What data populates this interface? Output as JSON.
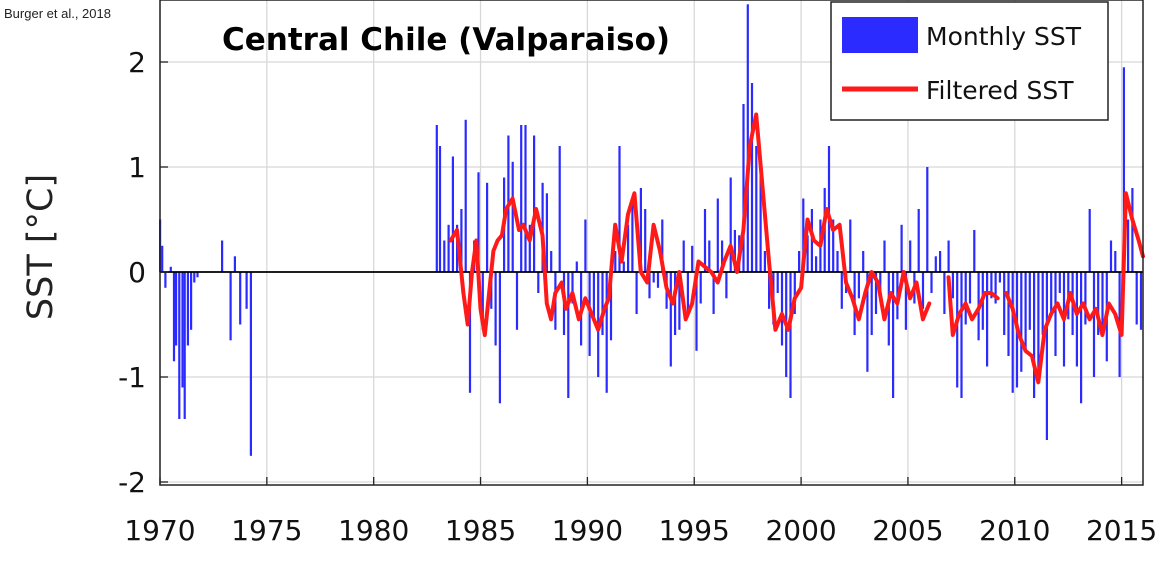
{
  "credit": "Burger et al., 2018",
  "chart_data": {
    "type": "bar",
    "title": "Central Chile (Valparaiso)",
    "ylabel": "SST [°C]",
    "xlabel": "",
    "xlim": [
      1970,
      2016
    ],
    "ylim": [
      -2,
      2.6
    ],
    "xticks": [
      1970,
      1975,
      1980,
      1985,
      1990,
      1995,
      2000,
      2005,
      2010,
      2015
    ],
    "yticks": [
      -2,
      -1,
      0,
      1,
      2
    ],
    "grid": true,
    "legend_position": "top-right",
    "colors": {
      "monthly": "#2b2bff",
      "filtered": "#ff1a1a",
      "zero_line": "#000000",
      "grid": "#d8d8d8"
    },
    "series": [
      {
        "name": "Monthly SST",
        "type": "bar",
        "x": [
          1970.0,
          1970.1,
          1970.25,
          1970.5,
          1970.65,
          1970.75,
          1970.9,
          1971.05,
          1971.15,
          1971.3,
          1971.45,
          1971.6,
          1971.75,
          1972.9,
          1973.3,
          1973.5,
          1973.75,
          1974.05,
          1974.25,
          1982.95,
          1983.1,
          1983.3,
          1983.5,
          1983.7,
          1983.9,
          1984.1,
          1984.3,
          1984.5,
          1984.7,
          1984.9,
          1985.1,
          1985.3,
          1985.5,
          1985.7,
          1985.9,
          1986.1,
          1986.3,
          1986.5,
          1986.7,
          1986.9,
          1987.1,
          1987.3,
          1987.5,
          1987.7,
          1987.9,
          1988.1,
          1988.3,
          1988.5,
          1988.7,
          1988.9,
          1989.1,
          1989.3,
          1989.5,
          1989.7,
          1989.9,
          1990.1,
          1990.3,
          1990.5,
          1990.7,
          1990.9,
          1991.1,
          1991.3,
          1991.5,
          1991.7,
          1991.9,
          1992.1,
          1992.3,
          1992.5,
          1992.7,
          1992.9,
          1993.1,
          1993.3,
          1993.5,
          1993.7,
          1993.9,
          1994.1,
          1994.3,
          1994.5,
          1994.7,
          1994.9,
          1995.1,
          1995.3,
          1995.5,
          1995.7,
          1995.9,
          1996.1,
          1996.3,
          1996.5,
          1996.7,
          1996.9,
          1997.1,
          1997.3,
          1997.5,
          1997.7,
          1997.9,
          1998.1,
          1998.3,
          1998.5,
          1998.7,
          1998.9,
          1999.1,
          1999.3,
          1999.5,
          1999.7,
          1999.9,
          2000.1,
          2000.3,
          2000.5,
          2000.7,
          2000.9,
          2001.1,
          2001.3,
          2001.5,
          2001.7,
          2001.9,
          2002.1,
          2002.3,
          2002.5,
          2002.7,
          2002.9,
          2003.1,
          2003.3,
          2003.5,
          2003.7,
          2003.9,
          2004.1,
          2004.3,
          2004.5,
          2004.7,
          2004.9,
          2005.1,
          2005.3,
          2005.5,
          2005.7,
          2005.9,
          2006.1,
          2006.3,
          2006.5,
          2006.7,
          2006.9,
          2007.1,
          2007.3,
          2007.5,
          2007.7,
          2007.9,
          2008.1,
          2008.3,
          2008.5,
          2008.7,
          2008.9,
          2009.1,
          2009.3,
          2009.5,
          2009.7,
          2009.9,
          2010.1,
          2010.3,
          2010.5,
          2010.7,
          2010.9,
          2011.1,
          2011.3,
          2011.5,
          2011.7,
          2011.9,
          2012.1,
          2012.3,
          2012.5,
          2012.7,
          2012.9,
          2013.1,
          2013.3,
          2013.5,
          2013.7,
          2013.9,
          2014.1,
          2014.3,
          2014.5,
          2014.7,
          2014.9,
          2015.1,
          2015.3,
          2015.5,
          2015.7,
          2015.9
        ],
        "y": [
          0.5,
          0.25,
          -0.15,
          0.05,
          -0.85,
          -0.7,
          -1.4,
          -1.1,
          -1.4,
          -0.7,
          -0.55,
          -0.1,
          -0.05,
          0.3,
          -0.65,
          0.15,
          -0.5,
          -0.35,
          -1.75,
          1.4,
          1.2,
          0.3,
          0.45,
          1.1,
          0.45,
          0.6,
          1.45,
          -1.15,
          0.3,
          0.95,
          -0.55,
          0.85,
          -0.35,
          -0.7,
          -1.25,
          0.9,
          1.3,
          1.05,
          -0.55,
          1.4,
          1.4,
          0.45,
          1.3,
          -0.2,
          0.85,
          0.75,
          0.2,
          -0.55,
          1.2,
          -0.6,
          -1.2,
          -0.3,
          0.1,
          -0.7,
          0.5,
          -0.8,
          -0.45,
          -1.0,
          -0.6,
          -1.15,
          -0.65,
          0.2,
          1.2,
          0.1,
          0.45,
          0.65,
          -0.4,
          0.8,
          0.6,
          -0.25,
          -0.1,
          -0.15,
          0.5,
          -0.35,
          -0.9,
          -0.6,
          -0.55,
          0.3,
          -0.4,
          0.25,
          -0.75,
          -0.3,
          0.6,
          0.3,
          -0.4,
          0.7,
          0.3,
          -0.25,
          0.9,
          0.4,
          0.35,
          1.6,
          2.55,
          1.8,
          1.2,
          1.1,
          0.2,
          -0.35,
          -0.5,
          -0.2,
          -0.7,
          -1.0,
          -1.2,
          -0.4,
          0.2,
          0.7,
          0.35,
          0.6,
          0.15,
          0.5,
          0.8,
          1.2,
          0.5,
          0.2,
          -0.35,
          -0.2,
          0.5,
          -0.6,
          -0.25,
          0.2,
          -0.95,
          -0.6,
          -0.4,
          -0.2,
          0.3,
          -0.7,
          -1.2,
          -0.45,
          0.45,
          -0.55,
          0.3,
          -0.3,
          0.6,
          -0.35,
          1.0,
          -0.2,
          0.15,
          0.2,
          -0.4,
          0.3,
          -0.25,
          -1.1,
          -1.2,
          -0.5,
          -0.3,
          0.4,
          -0.65,
          -0.55,
          -0.9,
          -0.25,
          -0.3,
          -0.1,
          -0.6,
          -0.8,
          -1.15,
          -1.1,
          -0.95,
          -0.75,
          -0.55,
          -1.2,
          -0.95,
          -0.6,
          -1.6,
          -0.4,
          -0.8,
          -0.2,
          -0.9,
          -0.45,
          -0.6,
          -0.9,
          -1.25,
          -0.5,
          0.6,
          -1.0,
          -0.6,
          -0.6,
          -0.85,
          0.3,
          0.2,
          -1.0,
          1.95,
          0.5,
          0.8,
          -0.5,
          -0.55
        ]
      },
      {
        "name": "Filtered SST",
        "type": "line",
        "x": [
          1983.6,
          1983.9,
          1984.2,
          1984.4,
          1984.6,
          1984.8,
          1985.0,
          1985.2,
          1985.4,
          1985.6,
          1985.8,
          1986.0,
          1986.2,
          1986.5,
          1986.8,
          1987.0,
          1987.3,
          1987.6,
          1987.9,
          1988.1,
          1988.3,
          1988.5,
          1988.8,
          1989.0,
          1989.3,
          1989.6,
          1989.9,
          1990.2,
          1990.5,
          1990.8,
          1991.0,
          1991.3,
          1991.6,
          1991.9,
          1992.2,
          1992.5,
          1992.8,
          1993.1,
          1993.4,
          1993.7,
          1994.0,
          1994.3,
          1994.6,
          1994.9,
          1995.2,
          1995.5,
          1995.8,
          1996.1,
          1996.4,
          1996.7,
          1997.0,
          1997.3,
          1997.6,
          1997.9,
          1998.2,
          1998.5,
          1998.8,
          1999.1,
          1999.4,
          1999.7,
          2000.0,
          2000.3,
          2000.6,
          2000.9,
          2001.2,
          2001.5,
          2001.8,
          2002.1,
          2002.4,
          2002.7,
          2003.0,
          2003.3,
          2003.6,
          2003.9,
          2004.2,
          2004.5,
          2004.8,
          2005.1,
          2005.4,
          2005.7,
          2006.0,
          null,
          2006.9,
          2007.1,
          2007.4,
          2007.7,
          2008.0,
          2008.3,
          2008.6,
          2008.9,
          2009.2,
          null,
          2009.6,
          2009.9,
          2010.2,
          2010.5,
          2010.8,
          2011.1,
          2011.4,
          2011.7,
          2012.0,
          2012.3,
          2012.6,
          2012.9,
          2013.2,
          2013.5,
          2013.8,
          2014.1,
          2014.4,
          2014.7,
          2015.0,
          2015.2,
          2015.5,
          2015.8,
          2016.0
        ],
        "y": [
          0.3,
          0.4,
          -0.2,
          -0.5,
          0.0,
          0.3,
          -0.35,
          -0.6,
          -0.2,
          0.2,
          0.3,
          0.35,
          0.6,
          0.7,
          0.4,
          0.45,
          0.3,
          0.6,
          0.35,
          -0.3,
          -0.45,
          -0.2,
          -0.1,
          -0.35,
          -0.2,
          -0.45,
          -0.25,
          -0.4,
          -0.55,
          -0.35,
          -0.25,
          0.45,
          0.1,
          0.55,
          0.75,
          0.0,
          -0.1,
          0.45,
          0.2,
          -0.15,
          -0.3,
          0.0,
          -0.45,
          -0.3,
          0.1,
          0.05,
          0.0,
          -0.1,
          0.1,
          0.25,
          0.0,
          0.4,
          1.2,
          1.5,
          0.8,
          0.1,
          -0.55,
          -0.4,
          -0.55,
          -0.25,
          -0.15,
          0.5,
          0.3,
          0.25,
          0.6,
          0.4,
          0.45,
          -0.1,
          -0.25,
          -0.45,
          -0.2,
          0.0,
          -0.1,
          -0.45,
          -0.2,
          -0.3,
          0.0,
          -0.25,
          -0.1,
          -0.45,
          -0.3,
          null,
          -0.05,
          -0.6,
          -0.4,
          -0.3,
          -0.45,
          -0.35,
          -0.2,
          -0.2,
          -0.25,
          null,
          -0.2,
          -0.35,
          -0.6,
          -0.75,
          -0.8,
          -1.05,
          -0.55,
          -0.4,
          -0.3,
          -0.45,
          -0.2,
          -0.4,
          -0.3,
          -0.45,
          -0.35,
          -0.6,
          -0.3,
          -0.4,
          -0.6,
          0.75,
          0.5,
          0.3,
          0.15
        ]
      }
    ]
  }
}
